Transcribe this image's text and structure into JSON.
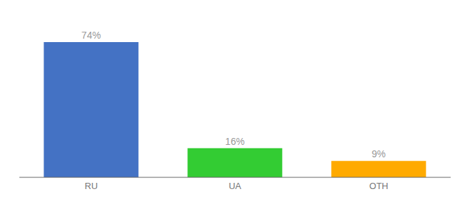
{
  "chart_data": {
    "type": "bar",
    "categories": [
      "RU",
      "UA",
      "OTH"
    ],
    "values": [
      74,
      16,
      9
    ],
    "value_labels": [
      "74%",
      "16%",
      "9%"
    ],
    "colors": [
      "#4472c4",
      "#33cc33",
      "#ffaa00"
    ],
    "ylim": [
      0,
      85
    ],
    "data_labels": true,
    "tick_labels": "x",
    "grid": false
  }
}
